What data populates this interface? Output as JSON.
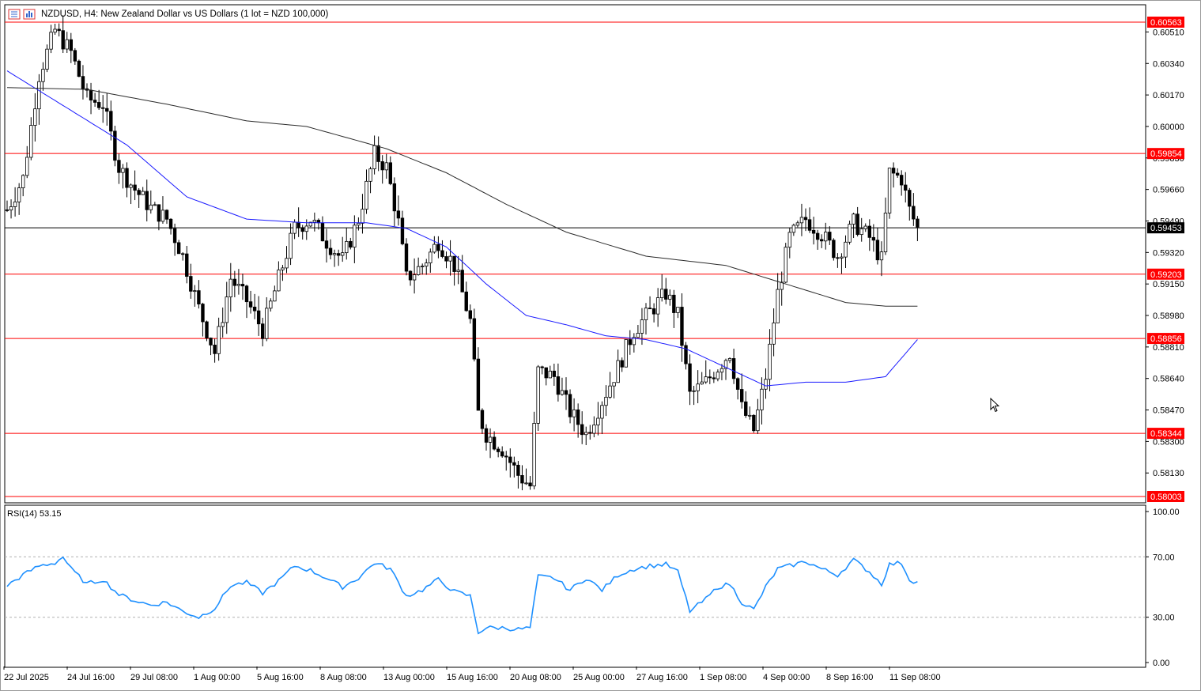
{
  "header": {
    "symbol_label": "NZDUSD, H4:  New Zealand Dollar vs US Dollars (1 lot = NZD 100,000)"
  },
  "indicator": {
    "label": "RSI(14) 53.15"
  },
  "colors": {
    "bull_candle": "#000000",
    "bear_candle": "#000000",
    "level_line": "#ff0000",
    "ma_fast": "#1a1aff",
    "ma_slow": "#2b2b2b",
    "rsi_line": "#1e90ff",
    "current_price_line": "#000000"
  },
  "icons": [
    "chart-list-icon",
    "chart-window-icon",
    "mouse-pointer-icon"
  ],
  "chart_data": [
    {
      "type": "candlestick",
      "title": "NZDUSD, H4:  New Zealand Dollar vs US Dollars (1 lot = NZD 100,000)",
      "ylim": [
        0.58,
        0.606
      ],
      "y_ticks": [
        "0.60510",
        "0.60340",
        "0.60170",
        "0.60000",
        "0.59830",
        "0.59660",
        "0.59490",
        "0.59320",
        "0.59150",
        "0.58980",
        "0.58810",
        "0.58640",
        "0.58470",
        "0.58300",
        "0.58130"
      ],
      "x_ticks": [
        "22 Jul 2025",
        "24 Jul 16:00",
        "29 Jul 08:00",
        "1 Aug 00:00",
        "5 Aug 16:00",
        "8 Aug 08:00",
        "13 Aug 00:00",
        "15 Aug 16:00",
        "20 Aug 08:00",
        "25 Aug 00:00",
        "27 Aug 16:00",
        "1 Sep 08:00",
        "4 Sep 00:00",
        "8 Sep 16:00",
        "11 Sep 08:00"
      ],
      "horizontal_levels": [
        {
          "label": "0.60563",
          "value": 0.60563
        },
        {
          "label": "0.59854",
          "value": 0.59854
        },
        {
          "label": "0.59203",
          "value": 0.59203
        },
        {
          "label": "0.58856",
          "value": 0.58856
        },
        {
          "label": "0.58344",
          "value": 0.58344
        },
        {
          "label": "0.58003",
          "value": 0.58003
        }
      ],
      "current_price": {
        "label": "0.59453",
        "value": 0.59453
      },
      "close_path": [
        [
          0,
          0.5955
        ],
        [
          4,
          0.5972
        ],
        [
          8,
          0.6028
        ],
        [
          12,
          0.6052
        ],
        [
          16,
          0.604
        ],
        [
          20,
          0.6015
        ],
        [
          24,
          0.6012
        ],
        [
          28,
          0.5978
        ],
        [
          32,
          0.5966
        ],
        [
          36,
          0.5956
        ],
        [
          40,
          0.595
        ],
        [
          44,
          0.593
        ],
        [
          48,
          0.5902
        ],
        [
          52,
          0.5878
        ],
        [
          56,
          0.5918
        ],
        [
          60,
          0.5906
        ],
        [
          64,
          0.589
        ],
        [
          68,
          0.5918
        ],
        [
          72,
          0.5945
        ],
        [
          76,
          0.595
        ],
        [
          80,
          0.5938
        ],
        [
          84,
          0.5928
        ],
        [
          88,
          0.595
        ],
        [
          92,
          0.5985
        ],
        [
          95,
          0.5978
        ],
        [
          98,
          0.5948
        ],
        [
          100,
          0.5918
        ],
        [
          104,
          0.5925
        ],
        [
          108,
          0.5938
        ],
        [
          112,
          0.5925
        ],
        [
          116,
          0.5895
        ],
        [
          118,
          0.5845
        ],
        [
          120,
          0.5834
        ],
        [
          124,
          0.5826
        ],
        [
          128,
          0.5812
        ],
        [
          131,
          0.5806
        ],
        [
          133,
          0.5868
        ],
        [
          137,
          0.5865
        ],
        [
          141,
          0.5846
        ],
        [
          145,
          0.5834
        ],
        [
          149,
          0.5852
        ],
        [
          153,
          0.587
        ],
        [
          157,
          0.589
        ],
        [
          161,
          0.59
        ],
        [
          165,
          0.591
        ],
        [
          168,
          0.5898
        ],
        [
          171,
          0.5855
        ],
        [
          175,
          0.5862
        ],
        [
          178,
          0.587
        ],
        [
          181,
          0.5878
        ],
        [
          184,
          0.5848
        ],
        [
          187,
          0.5836
        ],
        [
          190,
          0.5865
        ],
        [
          193,
          0.591
        ],
        [
          196,
          0.594
        ],
        [
          200,
          0.595
        ],
        [
          204,
          0.5942
        ],
        [
          208,
          0.593
        ],
        [
          212,
          0.5948
        ],
        [
          216,
          0.594
        ],
        [
          219,
          0.5928
        ],
        [
          221,
          0.5975
        ],
        [
          224,
          0.5972
        ],
        [
          226,
          0.5955
        ],
        [
          228,
          0.5945
        ]
      ],
      "series": [
        {
          "name": "",
          "type": "line",
          "points": [
            [
              0,
              0.603
            ],
            [
              15,
              0.601
            ],
            [
              30,
              0.599
            ],
            [
              45,
              0.5962
            ],
            [
              60,
              0.595
            ],
            [
              75,
              0.5948
            ],
            [
              90,
              0.5948
            ],
            [
              100,
              0.5945
            ],
            [
              110,
              0.5935
            ],
            [
              120,
              0.5915
            ],
            [
              130,
              0.5898
            ],
            [
              140,
              0.5893
            ],
            [
              150,
              0.5887
            ],
            [
              160,
              0.5885
            ],
            [
              170,
              0.588
            ],
            [
              180,
              0.587
            ],
            [
              190,
              0.586
            ],
            [
              200,
              0.5862
            ],
            [
              210,
              0.5862
            ],
            [
              220,
              0.5865
            ],
            [
              228,
              0.5885
            ]
          ]
        },
        {
          "name": "",
          "type": "line",
          "points": [
            [
              0,
              0.6021
            ],
            [
              20,
              0.602
            ],
            [
              40,
              0.6012
            ],
            [
              60,
              0.6003
            ],
            [
              75,
              0.6
            ],
            [
              95,
              0.5988
            ],
            [
              110,
              0.5975
            ],
            [
              125,
              0.5958
            ],
            [
              140,
              0.5943
            ],
            [
              160,
              0.593
            ],
            [
              180,
              0.5925
            ],
            [
              195,
              0.5915
            ],
            [
              210,
              0.5905
            ],
            [
              220,
              0.5903
            ],
            [
              228,
              0.5903
            ]
          ]
        }
      ]
    },
    {
      "type": "line",
      "title": "RSI(14) 53.15",
      "ylim": [
        0,
        100
      ],
      "y_ticks": [
        "100.00",
        "70.00",
        "30.00",
        "0.00"
      ],
      "levels": [
        70,
        30
      ],
      "series": [
        {
          "name": "RSI(14)",
          "points": [
            [
              0,
              51
            ],
            [
              4,
              58
            ],
            [
              8,
              64
            ],
            [
              12,
              66
            ],
            [
              14,
              70
            ],
            [
              16,
              62
            ],
            [
              20,
              52
            ],
            [
              24,
              55
            ],
            [
              28,
              45
            ],
            [
              32,
              41
            ],
            [
              36,
              38
            ],
            [
              40,
              40
            ],
            [
              44,
              34
            ],
            [
              48,
              30
            ],
            [
              52,
              36
            ],
            [
              56,
              51
            ],
            [
              60,
              53
            ],
            [
              64,
              46
            ],
            [
              68,
              54
            ],
            [
              72,
              64
            ],
            [
              76,
              61
            ],
            [
              80,
              56
            ],
            [
              84,
              50
            ],
            [
              88,
              56
            ],
            [
              92,
              66
            ],
            [
              96,
              62
            ],
            [
              100,
              44
            ],
            [
              104,
              48
            ],
            [
              108,
              55
            ],
            [
              112,
              47
            ],
            [
              116,
              44
            ],
            [
              118,
              20
            ],
            [
              120,
              23
            ],
            [
              124,
              23
            ],
            [
              128,
              22
            ],
            [
              131,
              23
            ],
            [
              133,
              57
            ],
            [
              137,
              56
            ],
            [
              141,
              48
            ],
            [
              145,
              56
            ],
            [
              149,
              48
            ],
            [
              153,
              58
            ],
            [
              157,
              62
            ],
            [
              161,
              64
            ],
            [
              165,
              65
            ],
            [
              168,
              60
            ],
            [
              171,
              34
            ],
            [
              175,
              42
            ],
            [
              178,
              50
            ],
            [
              181,
              52
            ],
            [
              184,
              40
            ],
            [
              187,
              35
            ],
            [
              190,
              50
            ],
            [
              193,
              62
            ],
            [
              196,
              64
            ],
            [
              200,
              67
            ],
            [
              204,
              62
            ],
            [
              208,
              58
            ],
            [
              212,
              68
            ],
            [
              216,
              60
            ],
            [
              219,
              52
            ],
            [
              221,
              65
            ],
            [
              224,
              66
            ],
            [
              226,
              55
            ],
            [
              228,
              53
            ]
          ]
        }
      ]
    }
  ]
}
